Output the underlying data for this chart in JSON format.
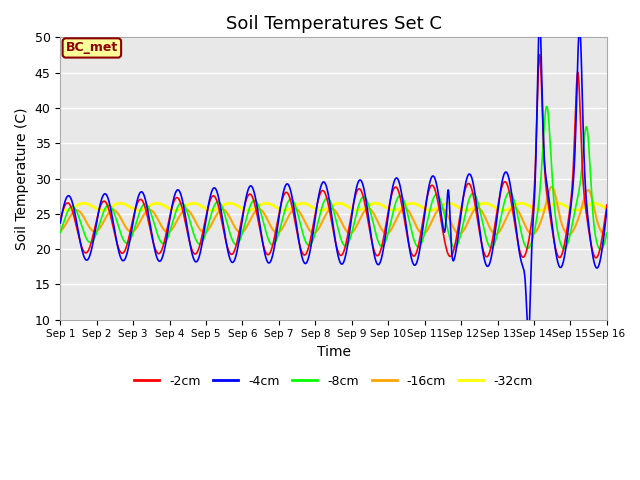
{
  "title": "Soil Temperatures Set C",
  "xlabel": "Time",
  "ylabel": "Soil Temperature (C)",
  "ylim": [
    10,
    50
  ],
  "xlim": [
    0,
    15
  ],
  "annotation_text": "BC_met",
  "annotation_color": "#8B0000",
  "annotation_bg": "#FFFF99",
  "annotation_border": "#8B0000",
  "grid_color": "white",
  "bg_color": "#E8E8E8",
  "legend_labels": [
    "-2cm",
    "-4cm",
    "-8cm",
    "-16cm",
    "-32cm"
  ],
  "line_colors": [
    "red",
    "blue",
    "lime",
    "orange",
    "yellow"
  ],
  "line_widths": [
    1.2,
    1.2,
    1.2,
    1.5,
    2.0
  ],
  "xtick_labels": [
    "Sep 1",
    "Sep 2",
    "Sep 3",
    "Sep 4",
    "Sep 5",
    "Sep 6",
    "Sep 7",
    "Sep 8",
    "Sep 9",
    "Sep 10",
    "Sep 11",
    "Sep 12",
    "Sep 13",
    "Sep 14",
    "Sep 15",
    "Sep 16"
  ],
  "xtick_positions": [
    0,
    1,
    2,
    3,
    4,
    5,
    6,
    7,
    8,
    9,
    10,
    11,
    12,
    13,
    14,
    15
  ],
  "ytick_positions": [
    10,
    15,
    20,
    25,
    30,
    35,
    40,
    45,
    50
  ]
}
